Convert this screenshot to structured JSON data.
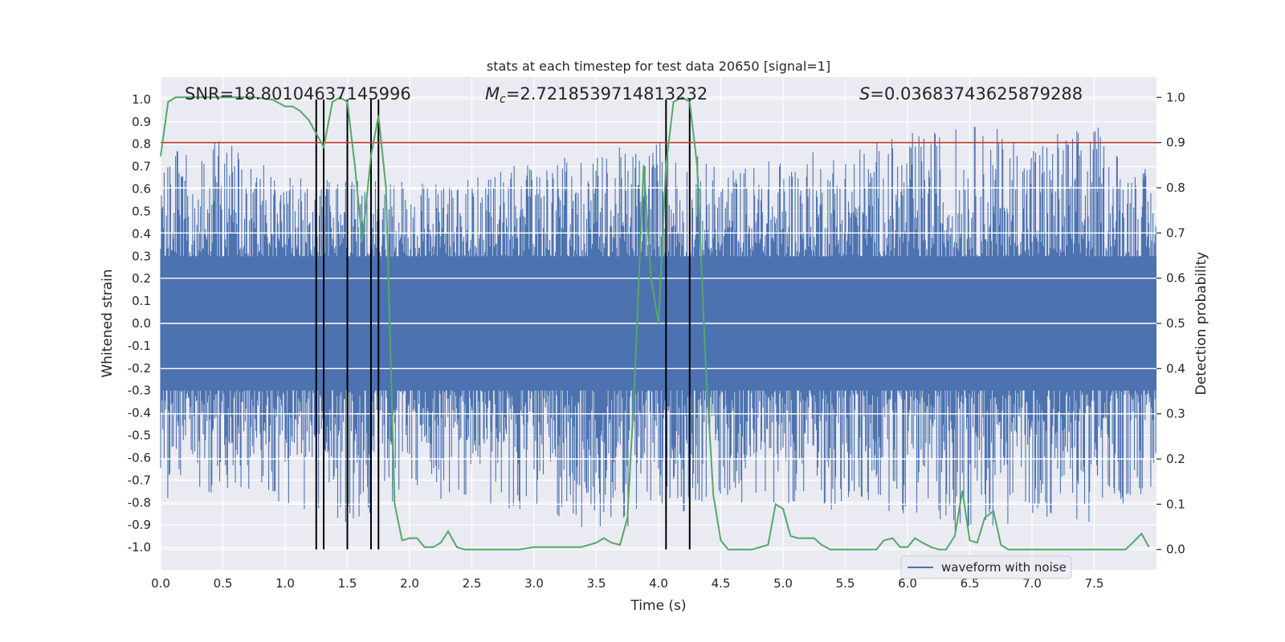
{
  "chart_data": {
    "type": "line",
    "title": "stats at each timestep for test data 20650 [signal=1]",
    "xlabel": "Time (s)",
    "ylabel_left": "Whitened strain",
    "ylabel_right": "Detection probability",
    "xlim": [
      0.0,
      8.0
    ],
    "ylim_left": [
      -1.1,
      1.1
    ],
    "ylim_right": [
      -0.045,
      1.045
    ],
    "grid": true,
    "x_ticks": [
      "0.0",
      "0.5",
      "1.0",
      "1.5",
      "2.0",
      "2.5",
      "3.0",
      "3.5",
      "4.0",
      "4.5",
      "5.0",
      "5.5",
      "6.0",
      "6.5",
      "7.0",
      "7.5"
    ],
    "y_ticks_left": [
      "1.0",
      "0.9",
      "0.8",
      "0.7",
      "0.6",
      "0.5",
      "0.4",
      "0.3",
      "0.2",
      "0.1",
      "0.0",
      "-0.1",
      "-0.2",
      "-0.3",
      "-0.4",
      "-0.5",
      "-0.6",
      "-0.7",
      "-0.8",
      "-0.9",
      "-1.0"
    ],
    "y_ticks_right": [
      "1.0",
      "0.9",
      "0.8",
      "0.7",
      "0.6",
      "0.5",
      "0.4",
      "0.3",
      "0.2",
      "0.1",
      "0.0"
    ],
    "annotations": {
      "snr": "SNR=18.80104637145996",
      "mc_symbol": "M",
      "mc_sub": "c",
      "mc_value": "=2.7218539714813232",
      "s_symbol": "S",
      "s_value": "=0.03683743625879288"
    },
    "legend": {
      "label": "waveform with noise",
      "location": "lower-right"
    },
    "threshold": {
      "value": 0.9,
      "axis": "right",
      "color": "#c0392b"
    },
    "detection_markers_x": [
      1.25,
      1.31,
      1.5,
      1.69,
      1.75,
      4.06,
      4.25
    ],
    "series": [
      {
        "name": "waveform with noise",
        "axis": "left",
        "kind": "noise",
        "color": "#4c72b0",
        "envelope_x": [
          0.0,
          0.5,
          1.0,
          1.5,
          2.0,
          2.5,
          3.0,
          3.5,
          4.0,
          4.5,
          5.0,
          5.5,
          6.0,
          6.5,
          7.0,
          7.5,
          8.0
        ],
        "envelope_max": [
          0.75,
          0.85,
          0.65,
          0.65,
          0.65,
          0.65,
          0.75,
          0.75,
          0.85,
          0.7,
          0.75,
          0.8,
          0.85,
          0.9,
          0.85,
          0.9,
          0.65
        ],
        "envelope_min": [
          -0.85,
          -0.75,
          -0.8,
          -0.9,
          -0.8,
          -0.8,
          -0.85,
          -0.97,
          -0.87,
          -0.8,
          -0.8,
          -0.85,
          -0.85,
          -0.95,
          -0.87,
          -0.9,
          -0.75
        ]
      },
      {
        "name": "Detection probability",
        "axis": "right",
        "color": "#55a868",
        "x": [
          0.0,
          0.06,
          0.12,
          0.25,
          0.5,
          0.75,
          0.9,
          1.0,
          1.06,
          1.12,
          1.19,
          1.25,
          1.31,
          1.38,
          1.44,
          1.5,
          1.56,
          1.62,
          1.69,
          1.75,
          1.81,
          1.88,
          1.94,
          2.0,
          2.06,
          2.12,
          2.19,
          2.25,
          2.31,
          2.38,
          2.44,
          2.5,
          2.62,
          2.75,
          2.88,
          3.0,
          3.06,
          3.12,
          3.25,
          3.38,
          3.5,
          3.56,
          3.62,
          3.69,
          3.75,
          3.81,
          3.88,
          3.94,
          4.0,
          4.06,
          4.12,
          4.19,
          4.25,
          4.31,
          4.38,
          4.44,
          4.5,
          4.56,
          4.62,
          4.75,
          4.88,
          4.94,
          5.0,
          5.06,
          5.12,
          5.19,
          5.25,
          5.31,
          5.38,
          5.44,
          5.5,
          5.62,
          5.75,
          5.81,
          5.88,
          5.94,
          6.0,
          6.06,
          6.12,
          6.19,
          6.25,
          6.31,
          6.38,
          6.44,
          6.5,
          6.56,
          6.62,
          6.69,
          6.75,
          6.81,
          6.88,
          6.94,
          7.0,
          7.25,
          7.5,
          7.75,
          7.81,
          7.88,
          7.94
        ],
        "y": [
          0.87,
          0.99,
          1.0,
          1.0,
          1.0,
          1.0,
          0.995,
          0.98,
          0.98,
          0.97,
          0.95,
          0.92,
          0.89,
          0.99,
          1.0,
          0.99,
          0.85,
          0.68,
          0.87,
          0.96,
          0.8,
          0.1,
          0.02,
          0.025,
          0.025,
          0.005,
          0.005,
          0.015,
          0.04,
          0.005,
          0.0,
          0.0,
          0.0,
          0.0,
          0.0,
          0.005,
          0.005,
          0.005,
          0.005,
          0.005,
          0.015,
          0.025,
          0.015,
          0.01,
          0.07,
          0.38,
          0.85,
          0.6,
          0.5,
          0.85,
          0.99,
          1.0,
          0.99,
          0.85,
          0.4,
          0.12,
          0.02,
          0.0,
          0.0,
          0.0,
          0.01,
          0.1,
          0.09,
          0.03,
          0.025,
          0.025,
          0.025,
          0.01,
          0.0,
          0.0,
          0.0,
          0.0,
          0.0,
          0.02,
          0.025,
          0.005,
          0.005,
          0.025,
          0.015,
          0.005,
          0.0,
          0.0,
          0.03,
          0.13,
          0.02,
          0.015,
          0.07,
          0.085,
          0.01,
          0.0,
          0.0,
          0.0,
          0.0,
          0.0,
          0.0,
          0.0,
          0.015,
          0.035,
          0.005
        ]
      }
    ]
  }
}
